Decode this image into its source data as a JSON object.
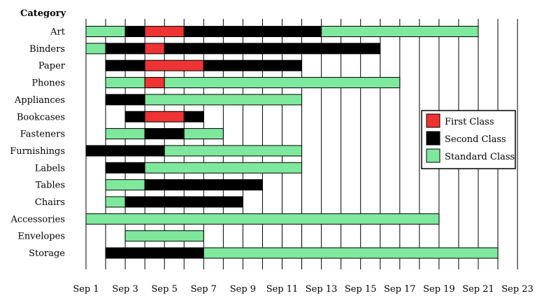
{
  "chart_data": {
    "type": "bar",
    "orientation": "horizontal-gantt",
    "ylabel": "Category",
    "xlabel": "",
    "x_ticks": [
      "Sep 1",
      "Sep 3",
      "Sep 5",
      "Sep 7",
      "Sep 9",
      "Sep 11",
      "Sep 13",
      "Sep 15",
      "Sep 17",
      "Sep 19",
      "Sep 21",
      "Sep 23"
    ],
    "x_tick_days": [
      1,
      3,
      5,
      7,
      9,
      11,
      13,
      15,
      17,
      19,
      21,
      23
    ],
    "xlim": [
      1,
      23
    ],
    "grid": "vertical daily",
    "legend_position": "right",
    "colors": {
      "First Class": "#ee3333",
      "Second Class": "#000000",
      "Standard Class": "#7ee89d"
    },
    "legend": [
      "First Class",
      "Second Class",
      "Standard Class"
    ],
    "categories": [
      "Art",
      "Binders",
      "Paper",
      "Phones",
      "Appliances",
      "Bookcases",
      "Fasteners",
      "Furnishings",
      "Labels",
      "Tables",
      "Chairs",
      "Accessories",
      "Envelopes",
      "Storage"
    ],
    "rows": [
      {
        "category": "Art",
        "segments": [
          {
            "start": 1,
            "end": 3,
            "class": "Standard Class"
          },
          {
            "start": 3,
            "end": 4,
            "class": "Second Class"
          },
          {
            "start": 4,
            "end": 6,
            "class": "First Class"
          },
          {
            "start": 6,
            "end": 13,
            "class": "Second Class"
          },
          {
            "start": 13,
            "end": 21,
            "class": "Standard Class"
          }
        ]
      },
      {
        "category": "Binders",
        "segments": [
          {
            "start": 1,
            "end": 2,
            "class": "Standard Class"
          },
          {
            "start": 2,
            "end": 4,
            "class": "Second Class"
          },
          {
            "start": 4,
            "end": 5,
            "class": "First Class"
          },
          {
            "start": 5,
            "end": 16,
            "class": "Second Class"
          }
        ]
      },
      {
        "category": "Paper",
        "segments": [
          {
            "start": 2,
            "end": 4,
            "class": "Second Class"
          },
          {
            "start": 4,
            "end": 7,
            "class": "First Class"
          },
          {
            "start": 7,
            "end": 12,
            "class": "Second Class"
          }
        ]
      },
      {
        "category": "Phones",
        "segments": [
          {
            "start": 2,
            "end": 4,
            "class": "Standard Class"
          },
          {
            "start": 4,
            "end": 5,
            "class": "First Class"
          },
          {
            "start": 5,
            "end": 17,
            "class": "Standard Class"
          }
        ]
      },
      {
        "category": "Appliances",
        "segments": [
          {
            "start": 2,
            "end": 4,
            "class": "Second Class"
          },
          {
            "start": 4,
            "end": 12,
            "class": "Standard Class"
          }
        ]
      },
      {
        "category": "Bookcases",
        "segments": [
          {
            "start": 3,
            "end": 4,
            "class": "Second Class"
          },
          {
            "start": 4,
            "end": 6,
            "class": "First Class"
          },
          {
            "start": 6,
            "end": 7,
            "class": "Second Class"
          }
        ]
      },
      {
        "category": "Fasteners",
        "segments": [
          {
            "start": 2,
            "end": 4,
            "class": "Standard Class"
          },
          {
            "start": 4,
            "end": 6,
            "class": "Second Class"
          },
          {
            "start": 6,
            "end": 8,
            "class": "Standard Class"
          }
        ]
      },
      {
        "category": "Furnishings",
        "segments": [
          {
            "start": 1,
            "end": 5,
            "class": "Second Class"
          },
          {
            "start": 5,
            "end": 12,
            "class": "Standard Class"
          }
        ]
      },
      {
        "category": "Labels",
        "segments": [
          {
            "start": 2,
            "end": 4,
            "class": "Second Class"
          },
          {
            "start": 4,
            "end": 12,
            "class": "Standard Class"
          }
        ]
      },
      {
        "category": "Tables",
        "segments": [
          {
            "start": 2,
            "end": 4,
            "class": "Standard Class"
          },
          {
            "start": 4,
            "end": 10,
            "class": "Second Class"
          }
        ]
      },
      {
        "category": "Chairs",
        "segments": [
          {
            "start": 2,
            "end": 3,
            "class": "Standard Class"
          },
          {
            "start": 3,
            "end": 9,
            "class": "Second Class"
          }
        ]
      },
      {
        "category": "Accessories",
        "segments": [
          {
            "start": 1,
            "end": 19,
            "class": "Standard Class"
          }
        ]
      },
      {
        "category": "Envelopes",
        "segments": [
          {
            "start": 3,
            "end": 7,
            "class": "Standard Class"
          }
        ]
      },
      {
        "category": "Storage",
        "segments": [
          {
            "start": 2,
            "end": 7,
            "class": "Second Class"
          },
          {
            "start": 7,
            "end": 22,
            "class": "Standard Class"
          }
        ]
      }
    ]
  }
}
